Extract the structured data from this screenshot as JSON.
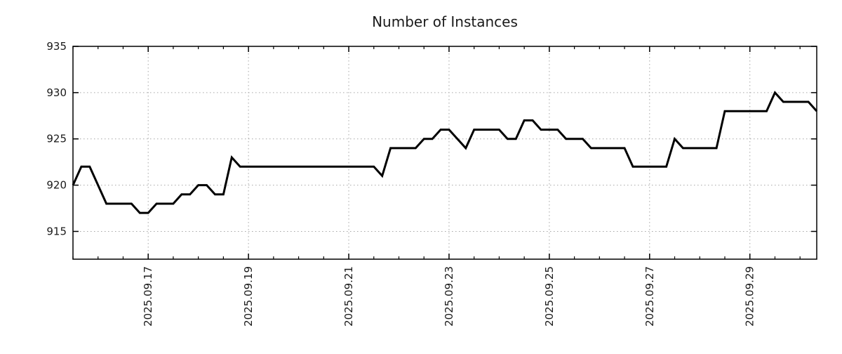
{
  "title": "Number of Instances",
  "chart_data": {
    "type": "line",
    "title": "Number of Instances",
    "grid": true,
    "legend_position": "none",
    "line_color": "#000000",
    "line_width": 3,
    "grid_color": "#a6a6a6",
    "axis_color": "#000000",
    "text_color": "#1a1a1a",
    "background_color": "#ffffff",
    "x_axis": {
      "tick_labels": [
        "2025.09.17",
        "2025.09.19",
        "2025.09.21",
        "2025.09.23",
        "2025.09.25",
        "2025.09.27",
        "2025.09.29"
      ],
      "tick_days": [
        17,
        19,
        21,
        23,
        25,
        27,
        29
      ],
      "minor_tick_step_days": 0.5,
      "range_days": [
        15.5,
        30.3333
      ],
      "sample_interval_hours": 4
    },
    "y_axis": {
      "tick_values": [
        915,
        920,
        925,
        930,
        935
      ],
      "tick_labels": [
        "915",
        "920",
        "925",
        "930",
        "935"
      ],
      "range": [
        912,
        935
      ]
    },
    "series_name": "instances",
    "values": [
      920,
      922,
      922,
      920,
      918,
      918,
      918,
      918,
      917,
      917,
      918,
      918,
      918,
      919,
      919,
      920,
      920,
      919,
      919,
      923,
      922,
      922,
      922,
      922,
      922,
      922,
      922,
      922,
      922,
      922,
      922,
      922,
      922,
      922,
      922,
      922,
      922,
      921,
      924,
      924,
      924,
      924,
      925,
      925,
      926,
      926,
      925,
      924,
      926,
      926,
      926,
      926,
      925,
      925,
      927,
      927,
      926,
      926,
      926,
      925,
      925,
      925,
      924,
      924,
      924,
      924,
      924,
      922,
      922,
      922,
      922,
      922,
      925,
      924,
      924,
      924,
      924,
      924,
      928,
      928,
      928,
      928,
      928,
      928,
      930,
      929,
      929,
      929,
      929,
      928
    ]
  }
}
